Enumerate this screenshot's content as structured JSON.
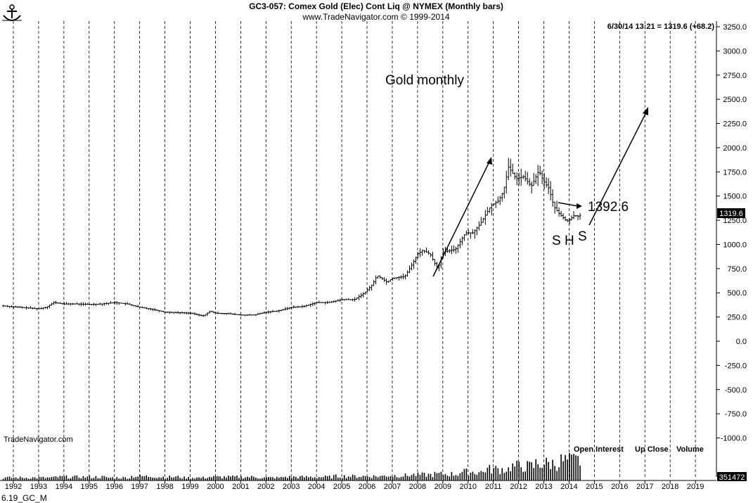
{
  "header": {
    "title": "GC3-057:  Comex Gold (Elec) Cont Liq @ NYMEX  (Monthly bars)",
    "subtitle": "www.TradeNavigator.com © 1999-2014",
    "last_quote": "6/30/14 13:21 = 1319.6 (+68.2)"
  },
  "footer": {
    "watermark": "TradeNavigator.com",
    "file_label": "6.19_GC_M",
    "indicator_labels": [
      "Open Interest",
      "Up Close",
      "Volume"
    ]
  },
  "annotations": {
    "title": "Gold monthly",
    "level_label": "1392.6",
    "pattern_letters": [
      "S",
      "H",
      "S"
    ]
  },
  "price_badge": "1319.6",
  "volume_badge": "351472",
  "chart_data": {
    "type": "bar",
    "bar_style": "ohlc-monthly",
    "xlabel": "",
    "ylabel": "",
    "x_ticks": [
      "1992",
      "1993",
      "1994",
      "1995",
      "1996",
      "1997",
      "1998",
      "1999",
      "2000",
      "2001",
      "2002",
      "2003",
      "2004",
      "2005",
      "2006",
      "2007",
      "2008",
      "2009",
      "2010",
      "2011",
      "2012",
      "2013",
      "2014",
      "2015",
      "2016",
      "2017",
      "2018",
      "2019"
    ],
    "y_ticks": [
      "3250.0",
      "3000.0",
      "2750.0",
      "2500.0",
      "2250.0",
      "2000.0",
      "1750.0",
      "1500.0",
      "1250.0",
      "1000.0",
      "750.0",
      "500.0",
      "250.0",
      "0.0",
      "-250.0",
      "-500.0",
      "-750.0",
      "-1000.0"
    ],
    "ylim": [
      -1100,
      3350
    ],
    "xlim": [
      1991.6,
      2019.5
    ],
    "grid": "vertical-dashed-yearly",
    "series": [
      {
        "name": "Gold",
        "points": [
          [
            1991.6,
            365
          ],
          [
            1992.0,
            355
          ],
          [
            1992.5,
            345
          ],
          [
            1993.0,
            335
          ],
          [
            1993.3,
            350
          ],
          [
            1993.6,
            400
          ],
          [
            1994.0,
            385
          ],
          [
            1994.5,
            385
          ],
          [
            1995.0,
            380
          ],
          [
            1995.5,
            385
          ],
          [
            1996.0,
            400
          ],
          [
            1996.5,
            385
          ],
          [
            1997.0,
            350
          ],
          [
            1997.5,
            330
          ],
          [
            1998.0,
            300
          ],
          [
            1998.5,
            295
          ],
          [
            1999.0,
            290
          ],
          [
            1999.5,
            260
          ],
          [
            1999.8,
            310
          ],
          [
            2000.0,
            290
          ],
          [
            2000.5,
            285
          ],
          [
            2001.0,
            270
          ],
          [
            2001.5,
            270
          ],
          [
            2002.0,
            300
          ],
          [
            2002.5,
            315
          ],
          [
            2003.0,
            350
          ],
          [
            2003.5,
            360
          ],
          [
            2004.0,
            400
          ],
          [
            2004.5,
            400
          ],
          [
            2005.0,
            430
          ],
          [
            2005.5,
            430
          ],
          [
            2005.9,
            500
          ],
          [
            2006.2,
            580
          ],
          [
            2006.4,
            680
          ],
          [
            2006.8,
            610
          ],
          [
            2007.0,
            650
          ],
          [
            2007.5,
            670
          ],
          [
            2007.8,
            800
          ],
          [
            2008.0,
            900
          ],
          [
            2008.2,
            940
          ],
          [
            2008.5,
            900
          ],
          [
            2008.8,
            740
          ],
          [
            2009.0,
            920
          ],
          [
            2009.5,
            950
          ],
          [
            2009.9,
            1120
          ],
          [
            2010.2,
            1120
          ],
          [
            2010.5,
            1220
          ],
          [
            2010.9,
            1400
          ],
          [
            2011.2,
            1450
          ],
          [
            2011.4,
            1550
          ],
          [
            2011.6,
            1800
          ],
          [
            2011.9,
            1680
          ],
          [
            2012.2,
            1700
          ],
          [
            2012.5,
            1600
          ],
          [
            2012.8,
            1760
          ],
          [
            2013.0,
            1650
          ],
          [
            2013.2,
            1580
          ],
          [
            2013.4,
            1390
          ],
          [
            2013.6,
            1320
          ],
          [
            2013.9,
            1240
          ],
          [
            2014.0,
            1250
          ],
          [
            2014.2,
            1300
          ],
          [
            2014.4,
            1290
          ],
          [
            2014.5,
            1320
          ]
        ]
      },
      {
        "name": "Volume",
        "values": [
          4,
          4,
          5,
          5,
          4,
          6,
          5,
          4,
          5,
          5,
          4,
          5,
          5,
          6,
          6,
          7,
          8,
          9,
          12,
          16,
          20,
          24,
          28,
          30,
          30,
          32,
          28,
          26,
          22
        ]
      }
    ]
  }
}
